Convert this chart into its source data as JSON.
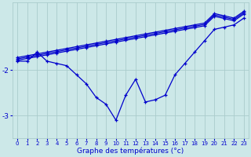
{
  "xlabel": "Graphe des températures (°c)",
  "bg_color": "#cce8e8",
  "line_color": "#0000cc",
  "grid_color": "#aacccc",
  "xlim": [
    -0.5,
    23.5
  ],
  "ylim": [
    -3.5,
    -0.5
  ],
  "yticks": [
    -3,
    -2
  ],
  "xticks": [
    0,
    1,
    2,
    3,
    4,
    5,
    6,
    7,
    8,
    9,
    10,
    11,
    12,
    13,
    14,
    15,
    16,
    17,
    18,
    19,
    20,
    21,
    22,
    23
  ],
  "zigzag": [
    -1.8,
    -1.8,
    -1.6,
    -1.8,
    -1.85,
    -1.9,
    -2.1,
    -2.3,
    -2.6,
    -2.75,
    -3.1,
    -2.55,
    -2.2,
    -2.7,
    -2.65,
    -2.55,
    -2.1,
    -1.85,
    -1.6,
    -1.35,
    -1.1,
    -1.05,
    -1.0,
    -0.85
  ],
  "line_a": [
    -1.72,
    -1.68,
    -1.64,
    -1.6,
    -1.56,
    -1.52,
    -1.48,
    -1.44,
    -1.4,
    -1.36,
    -1.32,
    -1.28,
    -1.24,
    -1.2,
    -1.16,
    -1.12,
    -1.08,
    -1.04,
    -1.0,
    -0.96,
    -0.75,
    -0.8,
    -0.85,
    -0.7
  ],
  "line_b": [
    -1.75,
    -1.71,
    -1.67,
    -1.63,
    -1.59,
    -1.55,
    -1.51,
    -1.47,
    -1.43,
    -1.39,
    -1.35,
    -1.31,
    -1.27,
    -1.23,
    -1.19,
    -1.15,
    -1.11,
    -1.07,
    -1.03,
    -0.99,
    -0.78,
    -0.83,
    -0.88,
    -0.73
  ],
  "line_c": [
    -1.78,
    -1.74,
    -1.7,
    -1.66,
    -1.62,
    -1.58,
    -1.54,
    -1.5,
    -1.46,
    -1.42,
    -1.38,
    -1.34,
    -1.3,
    -1.26,
    -1.22,
    -1.18,
    -1.14,
    -1.1,
    -1.06,
    -1.02,
    -0.81,
    -0.86,
    -0.91,
    -0.76
  ]
}
